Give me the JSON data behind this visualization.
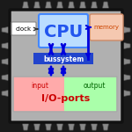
{
  "fig_bg": "#1a1a1a",
  "chip_bg": "#b0b0b0",
  "chip_border": "#111111",
  "pin_color": "#888888",
  "pin_dark": "#555555",
  "cpu_box_fill": "#bbddff",
  "cpu_box_edge": "#4488ff",
  "cpu_text": "CPU",
  "cpu_text_color": "#2255ee",
  "clock_box_fill": "#ffffff",
  "clock_box_edge": "#888888",
  "clock_text": "clock",
  "clock_text_color": "#000000",
  "memory_box_fill": "#f5c8b0",
  "memory_box_edge": "#cc8866",
  "memory_text": "memory",
  "memory_text_color": "#cc4400",
  "bus_box_fill": "#2244cc",
  "bus_text": "bussystem",
  "bus_text_color": "#ffffff",
  "io_box_fill_left": "#ffaaaa",
  "io_box_fill_right": "#aaffaa",
  "io_box_edge": "#aaaaaa",
  "io_text": "I/O-ports",
  "io_text_color": "#cc0000",
  "input_text": "input",
  "input_text_color": "#cc0000",
  "output_text": "output",
  "output_text_color": "#006600",
  "arrow_color": "#0000dd",
  "clock_arrow_color": "#333333"
}
